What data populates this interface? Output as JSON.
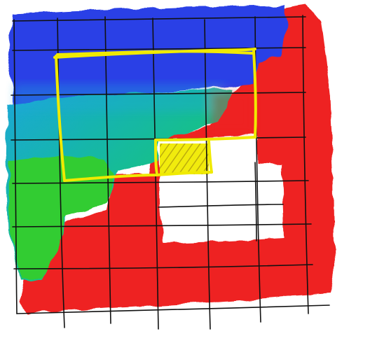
{
  "illustration": {
    "style": "hand-drawn sketch",
    "icon": "grid-paint-sketch-icon",
    "colors": {
      "blue": "#2a3fe6",
      "cyan": "#1aa7d9",
      "green": "#33cc33",
      "red": "#ee2222",
      "white_region": "#ffffff",
      "outline_yellow": "#f0ea00",
      "grid_black": "#111111",
      "background": "#ffffff"
    }
  }
}
